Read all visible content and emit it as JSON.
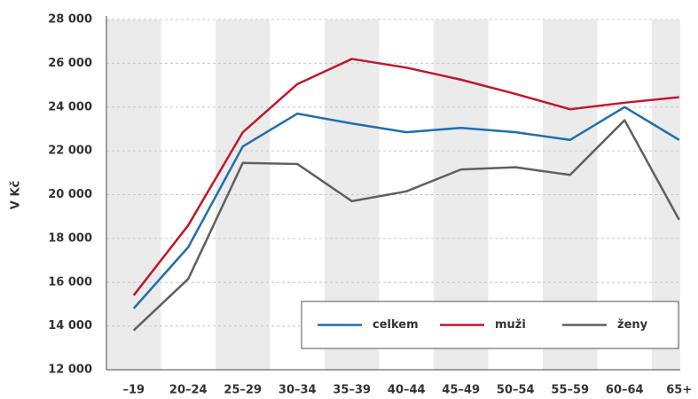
{
  "chart_data": {
    "type": "line",
    "y_label": "V Kč",
    "categories": [
      "–19",
      "20–24",
      "25–29",
      "30–34",
      "35–39",
      "40–44",
      "45–49",
      "50–54",
      "55–59",
      "60–64",
      "65+"
    ],
    "series": [
      {
        "name": "celkem",
        "color": "#1f6fae",
        "values": [
          14800,
          17600,
          22200,
          23700,
          23250,
          22850,
          23050,
          22850,
          22500,
          24000,
          22500
        ]
      },
      {
        "name": "muži",
        "color": "#c0172d",
        "values": [
          15400,
          18600,
          22850,
          25050,
          26200,
          25800,
          25250,
          24600,
          23900,
          24200,
          24450
        ]
      },
      {
        "name": "ženy",
        "color": "#5f5f5f",
        "values": [
          13800,
          16150,
          21450,
          21400,
          19700,
          20150,
          21150,
          21250,
          20900,
          23400,
          18850
        ]
      }
    ],
    "ylim": [
      12000,
      28000
    ],
    "yticks": [
      {
        "value": 12000,
        "label": "12 000"
      },
      {
        "value": 14000,
        "label": "14 000"
      },
      {
        "value": 16000,
        "label": "16 000"
      },
      {
        "value": 18000,
        "label": "18 000"
      },
      {
        "value": 20000,
        "label": "20 000"
      },
      {
        "value": 22000,
        "label": "22 000"
      },
      {
        "value": 24000,
        "label": "24 000"
      },
      {
        "value": 26000,
        "label": "26 000"
      },
      {
        "value": 28000,
        "label": "28 000"
      }
    ],
    "grid": true,
    "legend": "lower right"
  }
}
